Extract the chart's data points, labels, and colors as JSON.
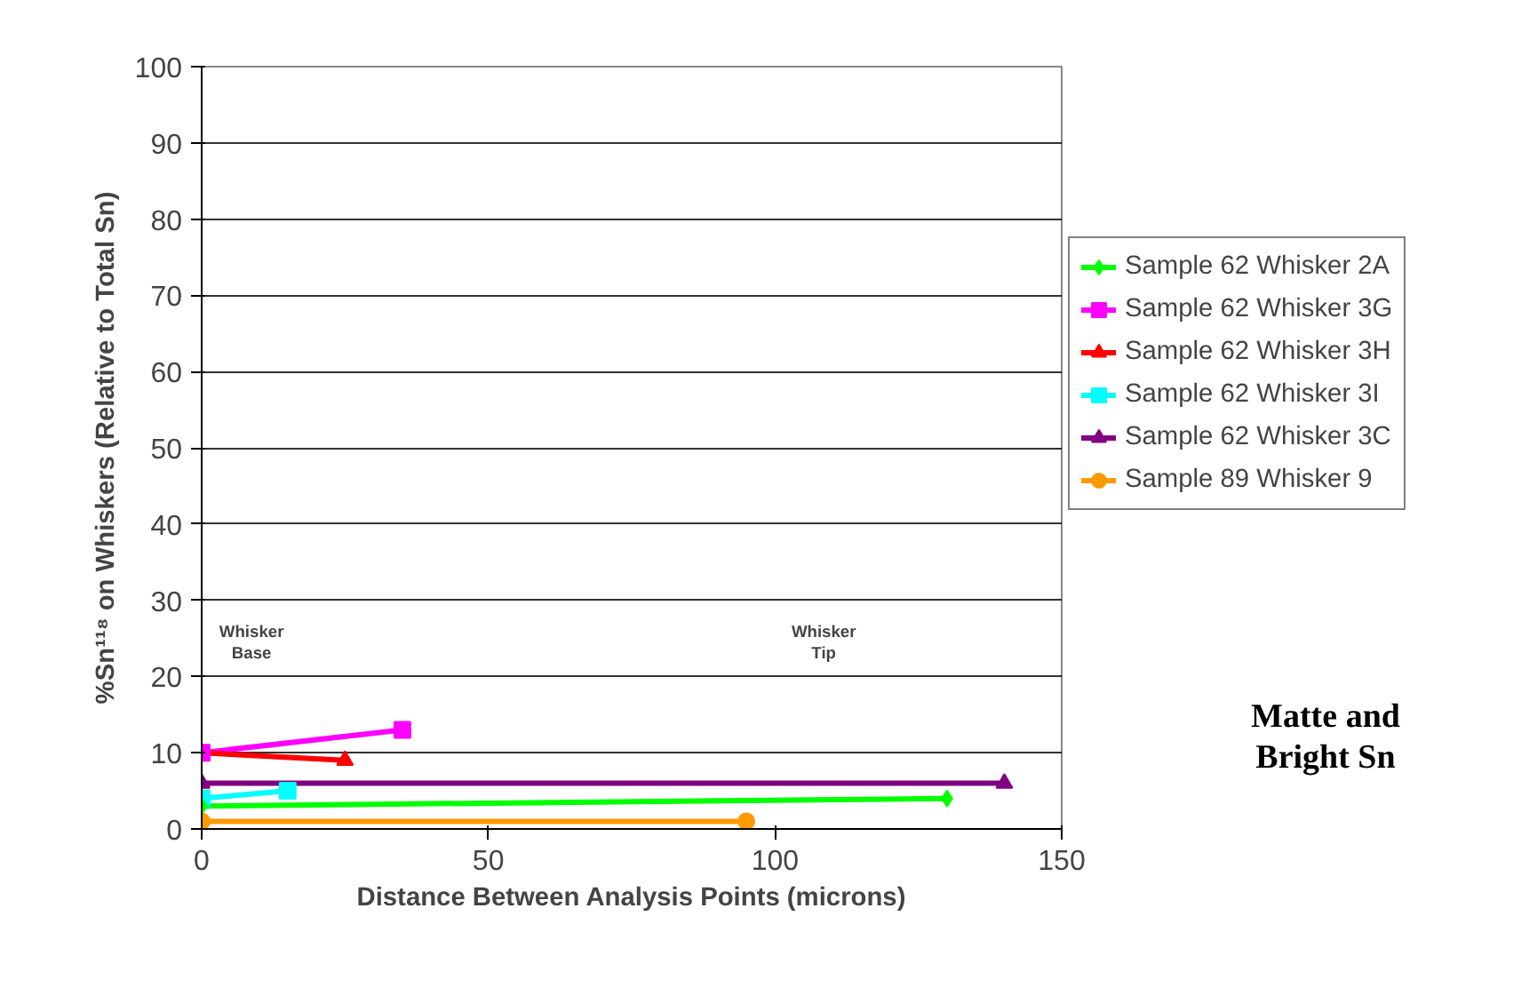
{
  "chart_data": {
    "type": "line",
    "xlabel": "Distance Between Analysis Points (microns)",
    "ylabel": "%Sn¹¹⁸ on Whiskers (Relative to Total Sn)",
    "xlim": [
      0,
      150
    ],
    "xticks": [
      0,
      50,
      100,
      150
    ],
    "ylim": [
      0,
      100
    ],
    "yticks": [
      0,
      10,
      20,
      30,
      40,
      50,
      60,
      70,
      80,
      90,
      100
    ],
    "grid": "y",
    "legend": "right",
    "line_style": "solid",
    "annotations": [
      "Whisker\nBase",
      "Whisker\nTip",
      "Matte and\nBright Sn"
    ],
    "series": [
      {
        "name": "Sample 62 Whisker 2A",
        "color": "#00ff00",
        "marker": "diamond",
        "x": [
          0,
          130
        ],
        "values": [
          3,
          4
        ]
      },
      {
        "name": "Sample 62 Whisker 3G",
        "color": "#ff00ff",
        "marker": "square",
        "x": [
          0,
          35
        ],
        "values": [
          10,
          13
        ]
      },
      {
        "name": "Sample 62 Whisker 3H",
        "color": "#ff0000",
        "marker": "triangle",
        "x": [
          0,
          25
        ],
        "values": [
          10,
          9
        ]
      },
      {
        "name": "Sample 62 Whisker 3I",
        "color": "#00ffff",
        "marker": "square",
        "x": [
          0,
          15
        ],
        "values": [
          4,
          5
        ]
      },
      {
        "name": "Sample 62 Whisker 3C",
        "color": "#800080",
        "marker": "triangle",
        "x": [
          0,
          140
        ],
        "values": [
          6,
          6
        ]
      },
      {
        "name": "Sample 89 Whisker 9",
        "color": "#ff9900",
        "marker": "circle",
        "x": [
          0,
          95
        ],
        "values": [
          1,
          1
        ]
      }
    ]
  }
}
